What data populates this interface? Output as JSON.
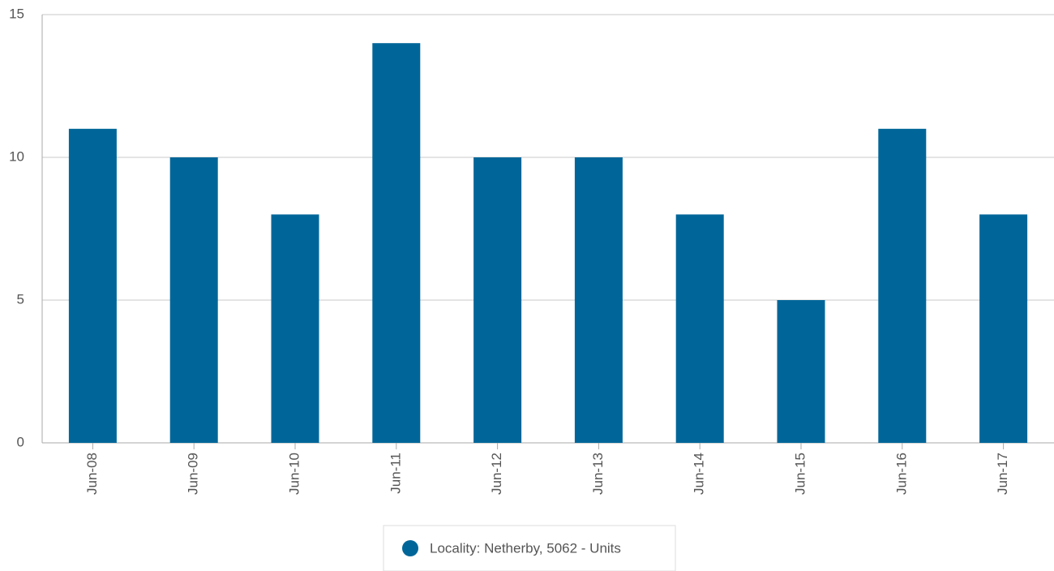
{
  "chart_data": {
    "type": "bar",
    "categories": [
      "Jun-08",
      "Jun-09",
      "Jun-10",
      "Jun-11",
      "Jun-12",
      "Jun-13",
      "Jun-14",
      "Jun-15",
      "Jun-16",
      "Jun-17"
    ],
    "series": [
      {
        "name": "Locality: Netherby, 5062 - Units",
        "color": "#006699",
        "values": [
          11,
          10,
          8,
          14,
          10,
          10,
          8,
          5,
          11,
          8
        ]
      }
    ],
    "ylim": [
      0,
      15
    ],
    "yticks": [
      0,
      5,
      10,
      15
    ],
    "grid": true,
    "legend": "bottom"
  }
}
